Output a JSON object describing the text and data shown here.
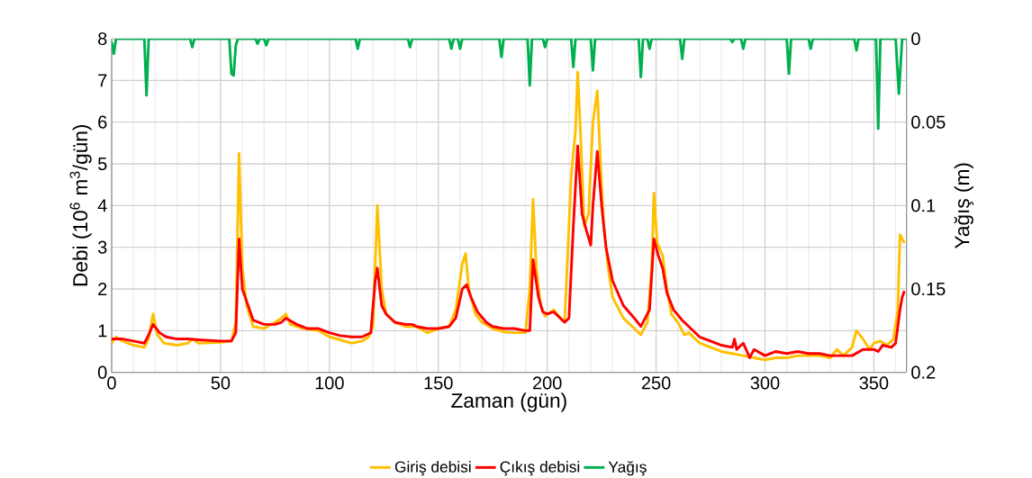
{
  "chart_data": {
    "type": "line",
    "xlabel": "Zaman (gün)",
    "ylabel": "Debi (10$^{6}$ m$^{3}$/gün)",
    "y2label": "Yağış (m)",
    "xlim": [
      0,
      365
    ],
    "xticks": [
      0,
      {
        "value": 10,
        "label": null
      },
      {
        "value": 20,
        "label": null
      },
      {
        "value": 30,
        "label": null
      },
      {
        "value": 40,
        "label": null
      },
      50,
      {
        "value": 60,
        "label": null
      },
      {
        "value": 70,
        "label": null
      },
      {
        "value": 80,
        "label": null
      },
      {
        "value": 90,
        "label": null
      },
      100,
      {
        "value": 110,
        "label": null
      },
      {
        "value": 120,
        "label": null
      },
      {
        "value": 130,
        "label": null
      },
      {
        "value": 140,
        "label": null
      },
      150,
      {
        "value": 160,
        "label": null
      },
      {
        "value": 170,
        "label": null
      },
      {
        "value": 180,
        "label": null
      },
      {
        "value": 190,
        "label": null
      },
      200,
      {
        "value": 210,
        "label": null
      },
      {
        "value": 220,
        "label": null
      },
      {
        "value": 230,
        "label": null
      },
      {
        "value": 240,
        "label": null
      },
      250,
      {
        "value": 260,
        "label": null
      },
      {
        "value": 270,
        "label": null
      },
      {
        "value": 280,
        "label": null
      },
      {
        "value": 290,
        "label": null
      },
      300,
      {
        "value": 310,
        "label": null
      },
      {
        "value": 320,
        "label": null
      },
      {
        "value": 330,
        "label": null
      },
      {
        "value": 340,
        "label": null
      },
      350,
      {
        "value": 360,
        "label": null
      }
    ],
    "ylim": [
      0,
      8
    ],
    "yticks": [
      0,
      1,
      2,
      3,
      4,
      5,
      6,
      7,
      8
    ],
    "y2lim": [
      0.2,
      0
    ],
    "y2ticks": [
      0,
      0.05,
      0.1,
      0.15,
      0.2
    ],
    "grid": true,
    "legend": "bottom",
    "marker": "none",
    "line_style": "solid",
    "series": [
      {
        "name": "Giriş debisi",
        "color": "#ffc000",
        "x": [
          0,
          2,
          5,
          10,
          15,
          17,
          19,
          21,
          24,
          30,
          35,
          37,
          40,
          50,
          55,
          57,
          58.5,
          60,
          62,
          65,
          70,
          75,
          78,
          80,
          82,
          88,
          95,
          100,
          105,
          110,
          115,
          118,
          120,
          122,
          124,
          126,
          130,
          135,
          140,
          145,
          150,
          155,
          158,
          161,
          162.5,
          164,
          167,
          170,
          175,
          180,
          185,
          190,
          192,
          193.5,
          195,
          197,
          199,
          203,
          206,
          208,
          211,
          213,
          214,
          215.5,
          217,
          219,
          221,
          223,
          224.5,
          226,
          228,
          230,
          235,
          240,
          243,
          246,
          248,
          249,
          250.5,
          253,
          255,
          257,
          260,
          263,
          265,
          270,
          275,
          280,
          285,
          290,
          295,
          300,
          305,
          310,
          315,
          320,
          325,
          330,
          333,
          336,
          340,
          342,
          345,
          348,
          350,
          353,
          356,
          359,
          361,
          362,
          364
        ],
        "values": [
          0.7,
          0.85,
          0.75,
          0.65,
          0.6,
          0.8,
          1.4,
          0.9,
          0.7,
          0.65,
          0.7,
          0.8,
          0.7,
          0.72,
          0.75,
          1.2,
          5.25,
          2.5,
          1.6,
          1.1,
          1.05,
          1.2,
          1.3,
          1.4,
          1.15,
          1.05,
          1.0,
          0.85,
          0.78,
          0.7,
          0.75,
          0.85,
          1.1,
          4.0,
          2.0,
          1.4,
          1.2,
          1.1,
          1.1,
          0.95,
          1.05,
          1.1,
          1.5,
          2.6,
          2.85,
          2.0,
          1.4,
          1.2,
          1.05,
          0.97,
          0.95,
          0.95,
          2.0,
          4.15,
          2.5,
          1.6,
          1.35,
          1.5,
          1.3,
          1.2,
          4.7,
          5.8,
          7.2,
          5.5,
          3.5,
          3.8,
          6.0,
          6.75,
          5.0,
          3.5,
          2.5,
          1.8,
          1.3,
          1.05,
          0.9,
          1.2,
          2.5,
          4.3,
          3.1,
          2.8,
          2.0,
          1.4,
          1.2,
          0.9,
          0.95,
          0.7,
          0.6,
          0.5,
          0.45,
          0.4,
          0.35,
          0.3,
          0.35,
          0.35,
          0.4,
          0.4,
          0.4,
          0.35,
          0.55,
          0.4,
          0.6,
          1.0,
          0.8,
          0.55,
          0.7,
          0.75,
          0.65,
          0.8,
          1.5,
          3.3,
          3.1
        ]
      },
      {
        "name": "Çıkış debisi",
        "color": "#ff0000",
        "x": [
          0,
          5,
          10,
          15,
          17,
          19,
          22,
          25,
          30,
          35,
          40,
          50,
          55,
          57,
          58.5,
          60,
          62,
          65,
          70,
          75,
          78,
          80,
          85,
          90,
          95,
          100,
          105,
          110,
          115,
          119,
          121,
          122,
          124,
          126,
          130,
          135,
          138,
          140,
          145,
          150,
          155,
          158,
          161,
          163,
          165,
          168,
          172,
          175,
          180,
          185,
          190,
          192,
          193.5,
          196,
          198,
          200,
          203,
          206,
          208,
          210,
          212,
          214,
          216,
          218,
          220,
          221,
          223,
          225,
          227,
          230,
          235,
          240,
          243,
          245,
          247,
          249,
          251,
          253,
          255,
          258,
          262,
          265,
          270,
          275,
          280,
          285,
          286,
          287,
          290,
          293,
          295,
          300,
          305,
          310,
          315,
          320,
          325,
          330,
          335,
          340,
          345,
          350,
          352,
          354,
          358,
          360,
          362,
          363,
          364
        ],
        "values": [
          0.8,
          0.8,
          0.75,
          0.7,
          0.9,
          1.15,
          0.95,
          0.85,
          0.8,
          0.8,
          0.78,
          0.75,
          0.75,
          0.95,
          3.2,
          2.0,
          1.7,
          1.25,
          1.15,
          1.15,
          1.2,
          1.3,
          1.15,
          1.05,
          1.05,
          0.95,
          0.88,
          0.85,
          0.85,
          0.95,
          2.2,
          2.5,
          1.6,
          1.4,
          1.2,
          1.15,
          1.15,
          1.1,
          1.05,
          1.05,
          1.1,
          1.3,
          2.0,
          2.1,
          1.8,
          1.45,
          1.2,
          1.1,
          1.05,
          1.05,
          1.0,
          1.0,
          2.7,
          1.8,
          1.45,
          1.4,
          1.45,
          1.3,
          1.2,
          1.3,
          3.5,
          5.43,
          3.8,
          3.4,
          3.05,
          4.0,
          5.3,
          4.0,
          3.0,
          2.2,
          1.6,
          1.3,
          1.1,
          1.3,
          1.5,
          3.2,
          2.8,
          2.5,
          1.9,
          1.5,
          1.25,
          1.1,
          0.85,
          0.75,
          0.65,
          0.6,
          0.8,
          0.55,
          0.7,
          0.35,
          0.55,
          0.4,
          0.5,
          0.45,
          0.5,
          0.45,
          0.45,
          0.4,
          0.4,
          0.4,
          0.55,
          0.55,
          0.5,
          0.65,
          0.6,
          0.7,
          1.5,
          1.8,
          1.95
        ]
      },
      {
        "name": "Yağış",
        "color": "#00b050",
        "axis": "y2",
        "x": [
          0,
          1,
          2,
          15,
          16,
          17,
          36,
          37,
          38,
          54,
          55,
          56,
          57,
          58,
          66,
          67,
          68,
          70,
          71,
          72,
          112,
          113,
          114,
          136,
          137,
          138,
          155,
          156,
          157,
          159,
          160,
          161,
          178,
          179,
          180,
          191,
          192,
          193,
          198,
          199,
          200,
          211,
          212,
          213,
          220,
          221,
          222,
          242,
          243,
          244,
          246,
          247,
          248,
          261,
          262,
          263,
          284,
          285,
          286,
          289,
          290,
          291,
          310,
          311,
          312,
          320,
          321,
          322,
          341,
          342,
          343,
          351,
          352,
          353,
          360,
          361.5,
          363,
          365
        ],
        "values": [
          0.002,
          0.009,
          0,
          0,
          0.034,
          0,
          0,
          0.005,
          0,
          0,
          0.021,
          0.022,
          0.004,
          0,
          0,
          0.003,
          0,
          0,
          0.004,
          0,
          0,
          0.006,
          0,
          0,
          0.005,
          0,
          0,
          0.006,
          0,
          0,
          0.006,
          0,
          0,
          0.011,
          0,
          0,
          0.028,
          0,
          0,
          0.005,
          0,
          0,
          0.017,
          0,
          0,
          0.019,
          0,
          0,
          0.023,
          0,
          0,
          0.006,
          0,
          0,
          0.012,
          0,
          0,
          0.002,
          0,
          0,
          0.006,
          0,
          0,
          0.021,
          0,
          0,
          0.006,
          0,
          0,
          0.007,
          0,
          0,
          0.054,
          0,
          0,
          0.033,
          0,
          0
        ]
      }
    ]
  }
}
